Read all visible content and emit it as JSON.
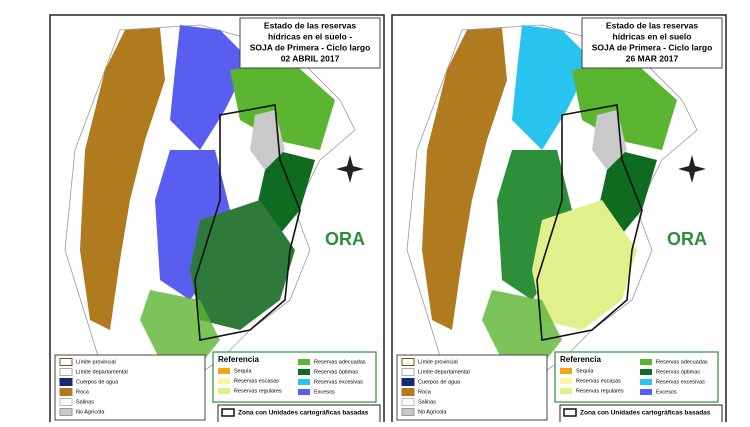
{
  "panels": [
    {
      "title": [
        "Estado de las reservas",
        "hídricas en el suelo -",
        "SOJA de Primera - Ciclo largo",
        "02 ABRIL 2017"
      ]
    },
    {
      "title": [
        "Estado de las reservas",
        "hídricas en el suelo",
        "SOJA de Primera - Ciclo largo",
        "26 MAR 2017"
      ]
    }
  ],
  "logo": "ORA",
  "base_legend": [
    "Límite provincial",
    "Límite departamental",
    "Cuerpos de agua",
    "Roca",
    "Salinas",
    "No Agrícola"
  ],
  "reference": {
    "title": "Referencia",
    "items": [
      "Sequía",
      "Reservas escasas",
      "Reservas regulares",
      "Reservas adecuadas",
      "Reservas óptimas",
      "Reservas excesivas",
      "Excesos"
    ]
  },
  "zone_note": "Zona con Unidades cartográficas basadas"
}
